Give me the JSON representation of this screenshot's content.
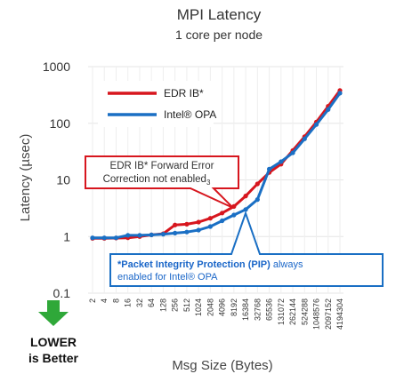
{
  "chart_data": {
    "type": "line",
    "title": "MPI Latency",
    "subtitle": "1 core per node",
    "xlabel": "Msg Size (Bytes)",
    "ylabel": "Latency (µsec)",
    "y_scale": "log",
    "ylim": [
      0.1,
      1000
    ],
    "y_ticks": [
      "0.1",
      "1",
      "10",
      "100",
      "1000"
    ],
    "grid": true,
    "legend_position": "top-left",
    "categories": [
      "2",
      "4",
      "8",
      "16",
      "32",
      "64",
      "128",
      "256",
      "512",
      "1024",
      "2048",
      "4096",
      "8192",
      "16384",
      "32768",
      "65536",
      "131072",
      "262144",
      "524288",
      "1048576",
      "2097152",
      "4194304"
    ],
    "series": [
      {
        "name": "EDR IB*",
        "color": "#d7161e",
        "values": [
          0.93,
          0.93,
          0.94,
          0.95,
          1.0,
          1.07,
          1.12,
          1.6,
          1.65,
          1.8,
          2.1,
          2.6,
          3.4,
          5.2,
          8.5,
          13.5,
          19,
          33,
          58,
          105,
          200,
          380
        ]
      },
      {
        "name": "Intel® OPA",
        "color": "#1a6fc4",
        "values": [
          0.95,
          0.95,
          0.95,
          1.05,
          1.05,
          1.07,
          1.1,
          1.15,
          1.2,
          1.3,
          1.5,
          1.9,
          2.4,
          3.0,
          4.5,
          15.5,
          21,
          30,
          53,
          95,
          175,
          340
        ]
      }
    ],
    "annotations": [
      {
        "id": "red",
        "text_line1": "EDR IB* Forward Error",
        "text_line2": "Correction not enabled",
        "text_sub": "3",
        "color": "#d7161e"
      },
      {
        "id": "blue",
        "bold_text": "*Packet Integrity Protection (PIP)",
        "text_rest": " always",
        "text_line2": "enabled for Intel® OPA",
        "color": "#1a6fc4"
      }
    ],
    "callout": {
      "line1": "LOWER",
      "line2": "is Better",
      "arrow_color": "#2fa839",
      "arrow_icon": "arrow-down-icon"
    }
  }
}
